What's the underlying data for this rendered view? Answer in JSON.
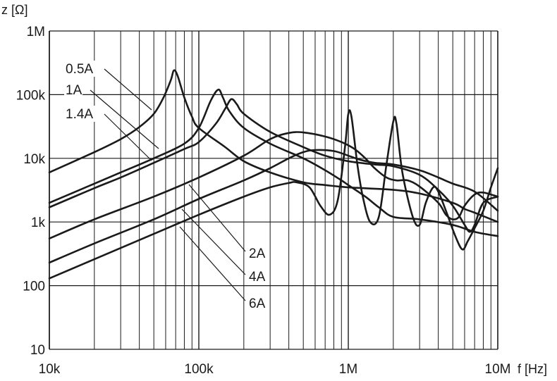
{
  "chart_data": {
    "type": "line",
    "xlabel": "f [Hz]",
    "ylabel": "z [Ω]",
    "xscale": "log",
    "yscale": "log",
    "xlim": [
      10000,
      10000000
    ],
    "ylim": [
      10,
      1000000
    ],
    "grid": true,
    "x_ticks": [
      {
        "value": 10000,
        "label": "10k"
      },
      {
        "value": 100000,
        "label": "100k"
      },
      {
        "value": 1000000,
        "label": "1M"
      },
      {
        "value": 10000000,
        "label": "10M"
      }
    ],
    "y_ticks": [
      {
        "value": 10,
        "label": "10"
      },
      {
        "value": 100,
        "label": "100"
      },
      {
        "value": 1000,
        "label": "1k"
      },
      {
        "value": 10000,
        "label": "10k"
      },
      {
        "value": 100000,
        "label": "100k"
      },
      {
        "value": 1000000,
        "label": "1M"
      }
    ],
    "series": [
      {
        "name": "0.5A",
        "points": [
          [
            10000,
            6000
          ],
          [
            20000,
            12500
          ],
          [
            30000,
            20000
          ],
          [
            40000,
            31000
          ],
          [
            50000,
            50000
          ],
          [
            58000,
            90000
          ],
          [
            65000,
            170000
          ],
          [
            68000,
            240000
          ],
          [
            72000,
            200000
          ],
          [
            80000,
            90000
          ],
          [
            90000,
            45000
          ],
          [
            100000,
            30000
          ],
          [
            150000,
            15000
          ],
          [
            200000,
            9000
          ],
          [
            300000,
            6000
          ],
          [
            500000,
            4200
          ],
          [
            700000,
            3800
          ],
          [
            1000000,
            3500
          ],
          [
            2000000,
            3200
          ],
          [
            3000000,
            2800
          ],
          [
            5000000,
            2000
          ],
          [
            6000000,
            1600
          ],
          [
            7000000,
            1400
          ],
          [
            10000000,
            1000
          ]
        ]
      },
      {
        "name": "1A",
        "points": [
          [
            10000,
            2000
          ],
          [
            20000,
            4000
          ],
          [
            30000,
            6000
          ],
          [
            50000,
            10000
          ],
          [
            80000,
            17000
          ],
          [
            100000,
            30000
          ],
          [
            120000,
            80000
          ],
          [
            135000,
            120000
          ],
          [
            145000,
            90000
          ],
          [
            160000,
            55000
          ],
          [
            200000,
            30000
          ],
          [
            300000,
            17000
          ],
          [
            500000,
            10000
          ],
          [
            700000,
            6500
          ],
          [
            900000,
            4500
          ],
          [
            1000000,
            3800
          ],
          [
            1300000,
            2500
          ],
          [
            1600000,
            1700
          ],
          [
            2000000,
            1200
          ],
          [
            3000000,
            1100
          ],
          [
            5000000,
            900
          ],
          [
            7000000,
            700
          ],
          [
            10000000,
            600
          ]
        ]
      },
      {
        "name": "1.4A",
        "points": [
          [
            10000,
            1700
          ],
          [
            20000,
            3400
          ],
          [
            30000,
            5000
          ],
          [
            50000,
            8500
          ],
          [
            80000,
            14000
          ],
          [
            100000,
            18000
          ],
          [
            130000,
            35000
          ],
          [
            150000,
            60000
          ],
          [
            165000,
            85000
          ],
          [
            180000,
            70000
          ],
          [
            200000,
            50000
          ],
          [
            300000,
            26000
          ],
          [
            500000,
            15000
          ],
          [
            700000,
            11000
          ],
          [
            1000000,
            9000
          ],
          [
            1500000,
            8000
          ],
          [
            2000000,
            7500
          ],
          [
            3000000,
            5500
          ],
          [
            4000000,
            3200
          ],
          [
            5000000,
            1800
          ],
          [
            6000000,
            900
          ],
          [
            6500000,
            700
          ],
          [
            7000000,
            900
          ],
          [
            8000000,
            2000
          ],
          [
            10000000,
            2500
          ]
        ]
      },
      {
        "name": "2A",
        "points": [
          [
            10000,
            550
          ],
          [
            20000,
            1100
          ],
          [
            50000,
            2500
          ],
          [
            100000,
            5000
          ],
          [
            200000,
            11000
          ],
          [
            300000,
            20000
          ],
          [
            400000,
            25000
          ],
          [
            500000,
            25500
          ],
          [
            700000,
            22000
          ],
          [
            900000,
            18000
          ],
          [
            1100000,
            14000
          ],
          [
            1300000,
            10000
          ],
          [
            1500000,
            7000
          ],
          [
            1800000,
            5000
          ],
          [
            2100000,
            4500
          ],
          [
            2500000,
            4500
          ],
          [
            3000000,
            3600
          ],
          [
            4000000,
            2000
          ],
          [
            4500000,
            1300
          ],
          [
            5000000,
            1100
          ],
          [
            5500000,
            1200
          ],
          [
            6000000,
            1800
          ],
          [
            7000000,
            2700
          ],
          [
            8000000,
            2900
          ],
          [
            10000000,
            2500
          ]
        ]
      },
      {
        "name": "4A",
        "points": [
          [
            10000,
            230
          ],
          [
            20000,
            460
          ],
          [
            50000,
            1100
          ],
          [
            100000,
            2300
          ],
          [
            200000,
            4500
          ],
          [
            300000,
            7000
          ],
          [
            400000,
            10000
          ],
          [
            500000,
            12500
          ],
          [
            600000,
            13500
          ],
          [
            800000,
            13000
          ],
          [
            1000000,
            11000
          ],
          [
            1200000,
            9500
          ],
          [
            1500000,
            8500
          ],
          [
            2000000,
            8000
          ],
          [
            3000000,
            6500
          ],
          [
            4000000,
            5000
          ],
          [
            5000000,
            4000
          ],
          [
            7000000,
            3000
          ],
          [
            10000000,
            1500
          ]
        ]
      },
      {
        "name": "6A",
        "points": [
          [
            10000,
            130
          ],
          [
            20000,
            260
          ],
          [
            50000,
            650
          ],
          [
            100000,
            1300
          ],
          [
            200000,
            2500
          ],
          [
            300000,
            3500
          ],
          [
            400000,
            4100
          ],
          [
            450000,
            4200
          ],
          [
            550000,
            3500
          ],
          [
            650000,
            1800
          ],
          [
            750000,
            1300
          ],
          [
            850000,
            2200
          ],
          [
            950000,
            15000
          ],
          [
            1000000,
            50000
          ],
          [
            1050000,
            45000
          ],
          [
            1150000,
            8000
          ],
          [
            1250000,
            2500
          ],
          [
            1400000,
            1000
          ],
          [
            1600000,
            1200
          ],
          [
            1800000,
            8000
          ],
          [
            2000000,
            38000
          ],
          [
            2100000,
            35000
          ],
          [
            2300000,
            6000
          ],
          [
            2700000,
            1200
          ],
          [
            3000000,
            900
          ],
          [
            3300000,
            2000
          ],
          [
            3700000,
            3500
          ],
          [
            4000000,
            3000
          ],
          [
            4500000,
            1500
          ],
          [
            5200000,
            600
          ],
          [
            5800000,
            370
          ],
          [
            6300000,
            500
          ],
          [
            7000000,
            800
          ],
          [
            8000000,
            1500
          ],
          [
            9000000,
            3500
          ],
          [
            10000000,
            7000
          ]
        ]
      }
    ],
    "annotations": [
      {
        "text": "0.5A",
        "series": "0.5A"
      },
      {
        "text": "1A",
        "series": "1A"
      },
      {
        "text": "1.4A",
        "series": "1.4A"
      },
      {
        "text": "2A",
        "series": "2A"
      },
      {
        "text": "4A",
        "series": "4A"
      },
      {
        "text": "6A",
        "series": "6A"
      }
    ],
    "colors": {
      "line": "#1a1a1a",
      "grid": "#1a1a1a",
      "background": "#ffffff"
    }
  }
}
